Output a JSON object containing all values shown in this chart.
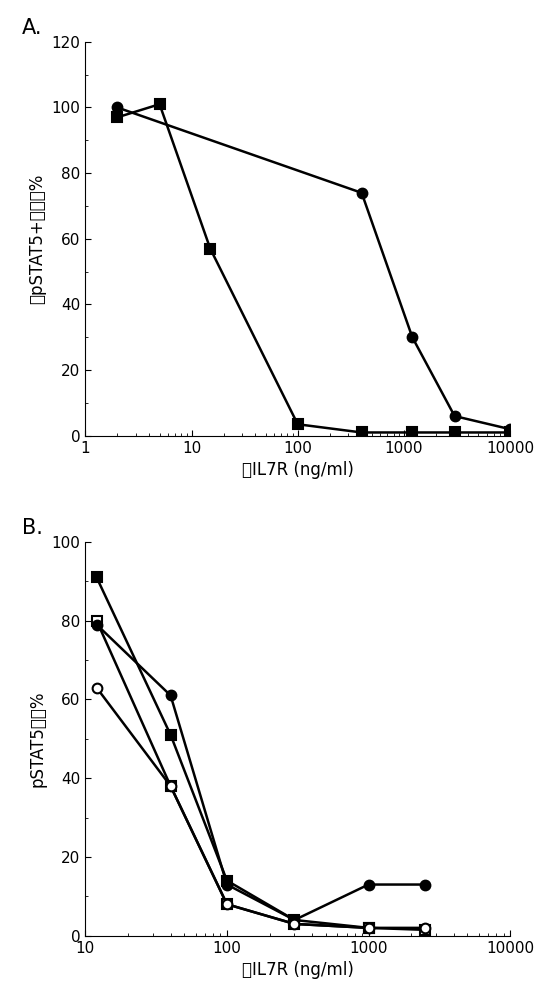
{
  "panel_A": {
    "label": "A.",
    "ylabel": "（pSTAT5+细胞）%",
    "xlabel": "抗IL7R (ng/ml)",
    "ylim": [
      0,
      120
    ],
    "yticks": [
      0,
      20,
      40,
      60,
      80,
      100,
      120
    ],
    "xlim": [
      1,
      10000
    ],
    "xticks": [
      1,
      10,
      100,
      1000,
      10000
    ],
    "xtick_labels": [
      "1",
      "10",
      "100",
      "1000",
      "10000"
    ],
    "series": [
      {
        "x": [
          2,
          5,
          15,
          100,
          400,
          1200,
          3000,
          10000
        ],
        "y": [
          97,
          101,
          57,
          3.5,
          1,
          1,
          1,
          1
        ],
        "marker": "s",
        "filled": true,
        "color": "#000000",
        "markersize": 7,
        "linewidth": 1.8
      },
      {
        "x": [
          2,
          400,
          1200,
          3000,
          10000
        ],
        "y": [
          100,
          74,
          30,
          6,
          2
        ],
        "marker": "o",
        "filled": true,
        "color": "#000000",
        "markersize": 7,
        "linewidth": 1.8
      }
    ]
  },
  "panel_B": {
    "label": "B.",
    "ylabel": "pSTAT5表达%",
    "xlabel": "抗IL7R (ng/ml)",
    "ylim": [
      0,
      100
    ],
    "yticks": [
      0,
      20,
      40,
      60,
      80,
      100
    ],
    "xlim": [
      10,
      10000
    ],
    "xticks": [
      10,
      100,
      1000,
      10000
    ],
    "xtick_labels": [
      "10",
      "100",
      "1000",
      "10000"
    ],
    "series": [
      {
        "x": [
          12,
          40,
          100,
          300,
          1000
        ],
        "y": [
          91,
          51,
          14,
          4,
          2
        ],
        "marker": "s",
        "filled": true,
        "color": "#000000",
        "markersize": 7,
        "linewidth": 1.8
      },
      {
        "x": [
          12,
          40,
          100,
          300,
          1000,
          2500
        ],
        "y": [
          80,
          38,
          8,
          3,
          2,
          1.5
        ],
        "marker": "s",
        "filled": false,
        "color": "#000000",
        "markersize": 7,
        "linewidth": 1.8
      },
      {
        "x": [
          12,
          40,
          100,
          300,
          1000,
          2500
        ],
        "y": [
          79,
          61,
          13,
          4,
          13,
          13
        ],
        "marker": "o",
        "filled": true,
        "color": "#000000",
        "markersize": 7,
        "linewidth": 1.8
      },
      {
        "x": [
          12,
          40,
          100,
          300,
          1000,
          2500
        ],
        "y": [
          63,
          38,
          8,
          3,
          2,
          2
        ],
        "marker": "o",
        "filled": false,
        "color": "#000000",
        "markersize": 7,
        "linewidth": 1.8
      }
    ]
  },
  "fig_bg": "#ffffff"
}
